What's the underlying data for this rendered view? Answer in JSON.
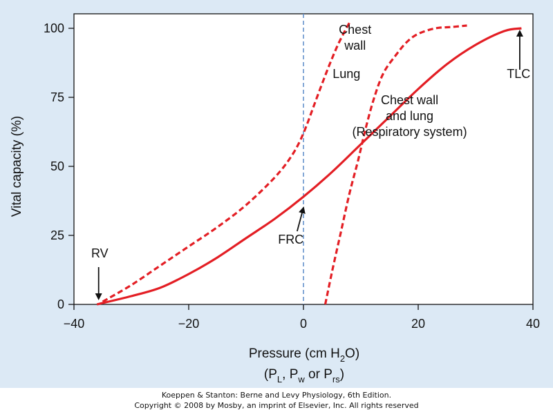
{
  "chart_data": {
    "type": "line",
    "xlabel": "Pressure (cm H2O)",
    "xlabel_parts": {
      "pre": "Pressure (cm H",
      "sub": "2",
      "post": "O)"
    },
    "xlabel2_parts": {
      "p1": "(P",
      "s1": "L",
      "p2": ", P",
      "s2": "w",
      "p3": " or P",
      "s3": "rs",
      "p4": ")"
    },
    "ylabel": "Vital capacity (%)",
    "xlim": [
      -40,
      40
    ],
    "ylim": [
      0,
      100
    ],
    "xticks": [
      -40,
      -20,
      0,
      20,
      40
    ],
    "xtick_labels": [
      "−40",
      "−20",
      "0",
      "20",
      "40"
    ],
    "yticks": [
      0,
      25,
      50,
      75,
      100
    ],
    "ytick_labels": [
      "0",
      "25",
      "50",
      "75",
      "100"
    ],
    "reference_line": {
      "x": 0,
      "style": "dashed",
      "color": "#5b8cc8"
    },
    "series": [
      {
        "id": "chest-wall",
        "style": "dashed",
        "color": "#e31e24",
        "points": [
          [
            -35,
            1
          ],
          [
            -30,
            7
          ],
          [
            -25,
            14
          ],
          [
            -20,
            21
          ],
          [
            -15,
            28
          ],
          [
            -10,
            36
          ],
          [
            -5,
            46
          ],
          [
            -2,
            54
          ],
          [
            0,
            62
          ],
          [
            2,
            73
          ],
          [
            4,
            84
          ],
          [
            6,
            94
          ],
          [
            8,
            102
          ]
        ]
      },
      {
        "id": "lung",
        "style": "dashed",
        "color": "#e31e24",
        "points": [
          [
            3.8,
            0
          ],
          [
            5,
            12
          ],
          [
            6.5,
            26
          ],
          [
            8,
            40
          ],
          [
            9.5,
            52
          ],
          [
            11,
            65
          ],
          [
            12.5,
            76
          ],
          [
            14,
            84
          ],
          [
            16,
            90
          ],
          [
            18,
            95
          ],
          [
            20,
            98
          ],
          [
            23,
            100
          ],
          [
            26,
            100.5
          ],
          [
            28.5,
            101
          ]
        ]
      },
      {
        "id": "respiratory-system",
        "style": "solid",
        "color": "#e31e24",
        "points": [
          [
            -36,
            0
          ],
          [
            -30,
            3
          ],
          [
            -25,
            6
          ],
          [
            -20,
            11
          ],
          [
            -15,
            17
          ],
          [
            -10,
            24
          ],
          [
            -5,
            31
          ],
          [
            0,
            39
          ],
          [
            5,
            48
          ],
          [
            10,
            58
          ],
          [
            15,
            68
          ],
          [
            20,
            78
          ],
          [
            25,
            87
          ],
          [
            30,
            94
          ],
          [
            35,
            99
          ],
          [
            38,
            100
          ]
        ]
      }
    ],
    "annotations": [
      {
        "id": "chest-wall-label",
        "lines": [
          "Chest",
          "wall"
        ],
        "x": 9,
        "y": 98
      },
      {
        "id": "lung-label",
        "lines": [
          "Lung"
        ],
        "x": 7.5,
        "y": 82
      },
      {
        "id": "respiratory-label",
        "lines": [
          "Chest wall",
          "and lung",
          "(Respiratory system)"
        ],
        "x": 18.5,
        "y": 72.5
      },
      {
        "id": "tlc-label",
        "lines": [
          "TLC"
        ],
        "x": 37.5,
        "y": 82
      },
      {
        "id": "rv-label",
        "lines": [
          "RV"
        ],
        "x": -35.5,
        "y": 17
      },
      {
        "id": "frc-label",
        "lines": [
          "FRC"
        ],
        "x": -2.2,
        "y": 22
      }
    ],
    "arrows": [
      {
        "id": "tlc-arrow",
        "from": [
          37.7,
          85
        ],
        "to": [
          37.7,
          99
        ]
      },
      {
        "id": "rv-arrow",
        "from": [
          -35.7,
          13.5
        ],
        "to": [
          -35.7,
          2
        ]
      },
      {
        "id": "frc-arrow",
        "from": [
          -1.1,
          26.5
        ],
        "to": [
          0,
          35
        ]
      }
    ]
  },
  "credit": {
    "line1": "Koeppen & Stanton: Berne and Levy Physiology, 6th Edition.",
    "line2": "Copyright © 2008 by Mosby, an imprint of Elsevier, Inc. All rights reserved"
  }
}
